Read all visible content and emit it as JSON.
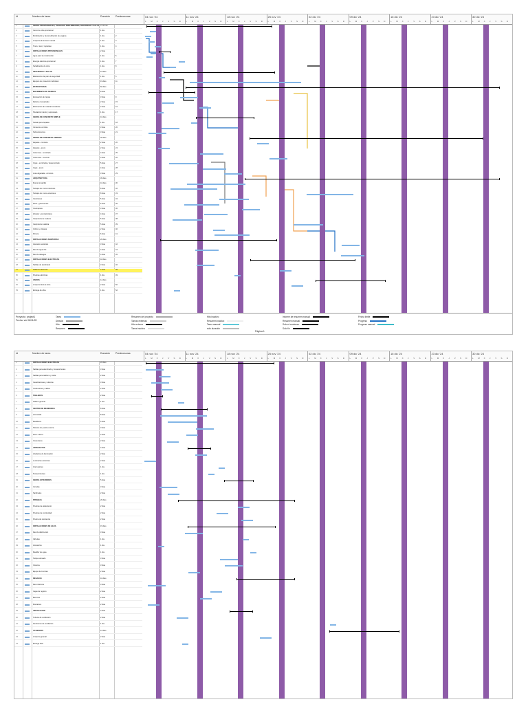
{
  "header": {
    "id_label": "Id",
    "name_label": "Nombre de tarea",
    "dur_label": "Duración",
    "pred_label": "Predecesoras"
  },
  "page1": {
    "weeks": [
      "04 nov '24",
      "11 nov '24",
      "18 nov '24",
      "25 nov '24",
      "02 dic '24",
      "09 dic '24",
      "16 dic '24",
      "23 dic '24",
      "30 dic '24"
    ],
    "project": "Proyecto: project1\nFecha: vie 06/11/20",
    "rows": [
      {
        "name": "OBRAS PROVISIONALES, TRABAJOS PRELIMINARES, SEGURIDAD Y SALUD",
        "dur": "21.5 días",
        "pred": "",
        "sum": true
      },
      {
        "name": "Cerco de obra provisional",
        "dur": "1 día",
        "pred": ""
      },
      {
        "name": "Movilización y desmovilización de equipos",
        "dur": "1 día",
        "pred": "2"
      },
      {
        "name": "Limpieza de terreno manual",
        "dur": "1 día",
        "pred": "3"
      },
      {
        "name": "Trazo, nivel y replanteo",
        "dur": "1 día",
        "pred": "4"
      },
      {
        "name": "INSTALACIONES PROVISIONALES",
        "dur": "2 días",
        "pred": "",
        "sum": true
      },
      {
        "name": "Agua para la construcción",
        "dur": "1 día",
        "pred": "5"
      },
      {
        "name": "Energía eléctrica provisional",
        "dur": "1 día",
        "pred": "7"
      },
      {
        "name": "Señalización de obra",
        "dur": "1 día",
        "pred": "8"
      },
      {
        "name": "SEGURIDAD Y SALUD",
        "dur": "19 días",
        "pred": "",
        "sum": true
      },
      {
        "name": "Elaboración del plan de seguridad",
        "dur": "1 día",
        "pred": "5"
      },
      {
        "name": "Equipos de protección individual",
        "dur": "19 días",
        "pred": "11"
      },
      {
        "name": "ESTRUCTURAS",
        "dur": "60 días",
        "pred": "",
        "sum": true
      },
      {
        "name": "MOVIMIENTO DE TIERRAS",
        "dur": "8 días",
        "pred": "",
        "sum": true
      },
      {
        "name": "Excavación de zanjas",
        "dur": "3 días",
        "pred": "9"
      },
      {
        "name": "Relleno compactado",
        "dur": "2 días",
        "pred": "15"
      },
      {
        "name": "Eliminación de material excedente",
        "dur": "2 días",
        "pred": "16"
      },
      {
        "name": "Nivelación interior y apisonado",
        "dur": "1 día",
        "pred": "17"
      },
      {
        "name": "OBRAS DE CONCRETO SIMPLE",
        "dur": "10 días",
        "pred": "",
        "sum": true
      },
      {
        "name": "Solado para zapatas",
        "dur": "1 día",
        "pred": "18"
      },
      {
        "name": "Cimientos corridos",
        "dur": "3 días",
        "pred": "20"
      },
      {
        "name": "Sobrecimientos",
        "dur": "3 días",
        "pred": "21"
      },
      {
        "name": "OBRAS DE CONCRETO ARMADO",
        "dur": "40 días",
        "pred": "",
        "sum": true
      },
      {
        "name": "Zapatas - concreto",
        "dur": "2 días",
        "pred": "20"
      },
      {
        "name": "Zapatas - acero",
        "dur": "2 días",
        "pred": "24"
      },
      {
        "name": "Columnas - encofrado",
        "dur": "4 días",
        "pred": "25"
      },
      {
        "name": "Columnas - concreto",
        "dur": "3 días",
        "pred": "26"
      },
      {
        "name": "Vigas - encofrado y desencofrado",
        "dur": "5 días",
        "pred": "27"
      },
      {
        "name": "Vigas - acero",
        "dur": "4 días",
        "pred": "28"
      },
      {
        "name": "Losa aligerada - concreto",
        "dur": "3 días",
        "pred": "29"
      },
      {
        "name": "ARQUITECTURA",
        "dur": "45 días",
        "pred": "",
        "sum": true
      },
      {
        "name": "Muros de ladrillo",
        "dur": "10 días",
        "pred": "30"
      },
      {
        "name": "Tarrajeo de muros interiores",
        "dur": "8 días",
        "pred": "32"
      },
      {
        "name": "Tarrajeo de muros exteriores",
        "dur": "8 días",
        "pred": "33"
      },
      {
        "name": "Cielorrasos",
        "dur": "5 días",
        "pred": "34"
      },
      {
        "name": "Pisos y pavimentos",
        "dur": "6 días",
        "pred": "35"
      },
      {
        "name": "Contrapisos",
        "dur": "3 días",
        "pred": "36"
      },
      {
        "name": "Zócalos y contrazócalos",
        "dur": "4 días",
        "pred": "37"
      },
      {
        "name": "Carpintería de madera",
        "dur": "5 días",
        "pred": "38"
      },
      {
        "name": "Carpintería metálica",
        "dur": "5 días",
        "pred": "39"
      },
      {
        "name": "Vidrios y cristales",
        "dur": "2 días",
        "pred": "40"
      },
      {
        "name": "Pintura",
        "dur": "6 días",
        "pred": "41"
      },
      {
        "name": "INSTALACIONES SANITARIAS",
        "dur": "20 días",
        "pred": "",
        "sum": true
      },
      {
        "name": "Aparatos sanitarios",
        "dur": "3 días",
        "pred": "42"
      },
      {
        "name": "Red de agua fría",
        "dur": "4 días",
        "pred": "44"
      },
      {
        "name": "Red de desagüe",
        "dur": "4 días",
        "pred": "45"
      },
      {
        "name": "INSTALACIONES ELÉCTRICAS",
        "dur": "18 días",
        "pred": "",
        "sum": true
      },
      {
        "name": "Salidas de alumbrado",
        "dur": "3 días",
        "pred": "46"
      },
      {
        "name": "Tableros eléctricos",
        "dur": "2 días",
        "pred": "48",
        "hl": true
      },
      {
        "name": "Pruebas eléctricas",
        "dur": "1 día",
        "pred": "49"
      },
      {
        "name": "VARIOS",
        "dur": "12 días",
        "pred": "",
        "sum": true
      },
      {
        "name": "Limpieza final de obra",
        "dur": "2 días",
        "pred": "50"
      },
      {
        "name": "Entrega de obra",
        "dur": "1 día",
        "pred": "52"
      }
    ],
    "legend": [
      {
        "label": "Tarea",
        "color": "#82b5e6"
      },
      {
        "label": "División",
        "color": "#999999"
      },
      {
        "label": "Hito",
        "color": "#000000"
      },
      {
        "label": "Resumen",
        "color": "#000000"
      },
      {
        "label": "Resumen del proyecto",
        "color": "#aaaaaa"
      },
      {
        "label": "Tareas externas",
        "color": "#cccccc"
      },
      {
        "label": "Hito externo",
        "color": "#000000"
      },
      {
        "label": "Tarea inactiva",
        "color": "#dddddd"
      },
      {
        "label": "Hito inactivo",
        "color": "#ffffff"
      },
      {
        "label": "Resumen inactivo",
        "color": "#eeeeee"
      },
      {
        "label": "Tarea manual",
        "color": "#5fc9d9"
      },
      {
        "label": "solo duración",
        "color": "#bbbbbb"
      },
      {
        "label": "Informe de resumen manual",
        "color": "#000000"
      },
      {
        "label": "Resumen manual",
        "color": "#000000"
      },
      {
        "label": "Solo el comienzo",
        "color": "#000000"
      },
      {
        "label": "Solo fin",
        "color": "#000000"
      },
      {
        "label": "Fecha límite",
        "color": "#000000"
      },
      {
        "label": "Progreso",
        "color": "#1f6fc5"
      },
      {
        "label": "Progreso manual",
        "color": "#3ebcc9"
      }
    ],
    "page_label": "Página 1"
  },
  "page2": {
    "rows": [
      {
        "name": "INSTALACIONES ELÉCTRICAS",
        "dur": "22 días",
        "pred": "",
        "sum": true
      },
      {
        "name": "Salidas para alumbrado y tomacorrientes",
        "dur": "3 días",
        "pred": ""
      },
      {
        "name": "Salidas para teléfono y cable",
        "dur": "2 días",
        "pred": ""
      },
      {
        "name": "Canalizaciones y tuberías",
        "dur": "3 días",
        "pred": ""
      },
      {
        "name": "Conductores y cables",
        "dur": "2 días",
        "pred": ""
      },
      {
        "name": "TABLEROS",
        "dur": "2 días",
        "pred": "",
        "sum": true
      },
      {
        "name": "Tablero general",
        "dur": "1 día",
        "pred": ""
      },
      {
        "name": "CENTRO DE MEDIDORES",
        "dur": "8 días",
        "pred": "",
        "sum": true
      },
      {
        "name": "Acometida",
        "dur": "8 días",
        "pred": ""
      },
      {
        "name": "Medidores",
        "dur": "5 días",
        "pred": ""
      },
      {
        "name": "Sistema de puesta a tierra",
        "dur": "3 días",
        "pred": ""
      },
      {
        "name": "Pozo a tierra",
        "dur": "2 días",
        "pred": ""
      },
      {
        "name": "Conexiones",
        "dur": "2 días",
        "pred": ""
      },
      {
        "name": "ARTEFACTOS",
        "dur": "4 días",
        "pred": "",
        "sum": true
      },
      {
        "name": "Artefactos de iluminación",
        "dur": "2 días",
        "pred": ""
      },
      {
        "name": "Luminarias exteriores",
        "dur": "2 días",
        "pred": ""
      },
      {
        "name": "Interruptores",
        "dur": "1 día",
        "pred": ""
      },
      {
        "name": "Tomacorrientes",
        "dur": "1 día",
        "pred": ""
      },
      {
        "name": "OBRAS EXTERIORES",
        "dur": "5 días",
        "pred": "",
        "sum": true
      },
      {
        "name": "Veredas",
        "dur": "3 días",
        "pred": ""
      },
      {
        "name": "Sardineles",
        "dur": "2 días",
        "pred": ""
      },
      {
        "name": "PRUEBAS",
        "dur": "20 días",
        "pred": "",
        "sum": true
      },
      {
        "name": "Pruebas de aislamiento",
        "dur": "2 días",
        "pred": ""
      },
      {
        "name": "Pruebas de continuidad",
        "dur": "2 días",
        "pred": ""
      },
      {
        "name": "Prueba de resistencia",
        "dur": "2 días",
        "pred": ""
      },
      {
        "name": "INSTALACIONES DE AGUA",
        "dur": "15 días",
        "pred": "",
        "sum": true
      },
      {
        "name": "Red de distribución",
        "dur": "3 días",
        "pred": ""
      },
      {
        "name": "Válvulas",
        "dur": "1 día",
        "pred": ""
      },
      {
        "name": "Accesorios",
        "dur": "1 día",
        "pred": ""
      },
      {
        "name": "Medidor de agua",
        "dur": "1 día",
        "pred": ""
      },
      {
        "name": "Tanque elevado",
        "dur": "3 días",
        "pred": ""
      },
      {
        "name": "Cisterna",
        "dur": "3 días",
        "pred": ""
      },
      {
        "name": "Equipo de bombeo",
        "dur": "2 días",
        "pred": ""
      },
      {
        "name": "DESAGÜE",
        "dur": "10 días",
        "pred": "",
        "sum": true
      },
      {
        "name": "Red colectora",
        "dur": "3 días",
        "pred": ""
      },
      {
        "name": "Cajas de registro",
        "dur": "2 días",
        "pred": ""
      },
      {
        "name": "Buzones",
        "dur": "2 días",
        "pred": ""
      },
      {
        "name": "Montantes",
        "dur": "2 días",
        "pred": ""
      },
      {
        "name": "VENTILACIÓN",
        "dur": "4 días",
        "pred": "",
        "sum": true
      },
      {
        "name": "Tubería de ventilación",
        "dur": "2 días",
        "pred": ""
      },
      {
        "name": "Sombreros de ventilación",
        "dur": "1 día",
        "pred": ""
      },
      {
        "name": "ACABADOS",
        "dur": "12 días",
        "pred": "",
        "sum": true
      },
      {
        "name": "Limpieza general",
        "dur": "2 días",
        "pred": ""
      },
      {
        "name": "Entrega final",
        "dur": "1 día",
        "pred": ""
      }
    ]
  }
}
